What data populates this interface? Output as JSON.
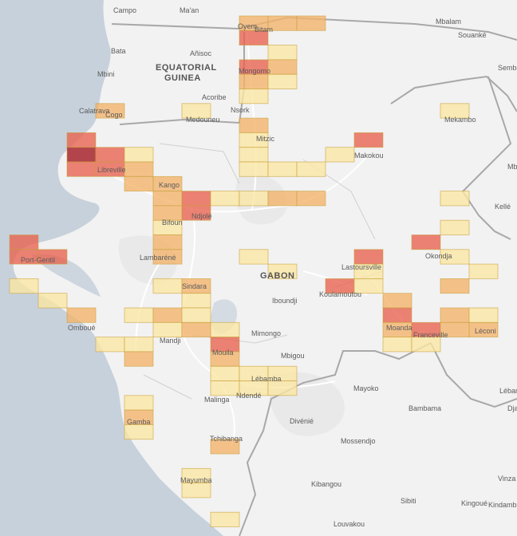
{
  "map": {
    "country_labels": [
      "EQUATORIAL",
      "GUINEA",
      "GABON"
    ],
    "place_labels": [
      "Campo",
      "Ma'an",
      "Mbalam",
      "Souanké",
      "Sembé",
      "Bata",
      "Añisoc",
      "Mbini",
      "Acoribe",
      "Nsork",
      "Calatrava",
      "Cogo",
      "Medouneu",
      "Mekambo",
      "Mitzic",
      "Makokou",
      "Libreville",
      "Kango",
      "Bifoun",
      "Ndjolé",
      "Kellé",
      "Okondja",
      "Port-Gentil",
      "Lambaréné",
      "Lastoursville",
      "Koulamoutou",
      "Sindara",
      "Iboundji",
      "Omboué",
      "Mimongo",
      "Mouila",
      "Moanda",
      "Franceville",
      "Léconi",
      "Mbigou",
      "Ndendé",
      "Tchibanga",
      "Mayumba",
      "Mayoko",
      "Léban",
      "Bambama",
      "Divénié",
      "Mossendjo",
      "Kibangou",
      "Sibiti",
      "Kingoué",
      "Kindamba",
      "Louvakou",
      "Vinza",
      "Mbi",
      "Dja",
      "Gamba",
      "Mandji",
      "Oyem",
      "Bitam",
      "Mongomo",
      "Lébamba",
      "Malinga"
    ],
    "colors": {
      "water": "#c7d1dc",
      "land": "#f2f2f2",
      "border": "#a8a8a8",
      "road": "#ffffff"
    },
    "heat_levels": [
      {
        "level": 1,
        "color": "#fbe7a3"
      },
      {
        "level": 2,
        "color": "#f3b36a"
      },
      {
        "level": 3,
        "color": "#e8624e"
      },
      {
        "level": 4,
        "color": "#a8262f"
      }
    ],
    "cells": [
      {
        "row": 0,
        "col": 8,
        "level": 2
      },
      {
        "row": 0,
        "col": 9,
        "level": 2
      },
      {
        "row": 0,
        "col": 10,
        "level": 2
      },
      {
        "row": 1,
        "col": 8,
        "level": 3
      },
      {
        "row": 2,
        "col": 9,
        "level": 1
      },
      {
        "row": 3,
        "col": 8,
        "level": 3
      },
      {
        "row": 3,
        "col": 9,
        "level": 2
      },
      {
        "row": 4,
        "col": 8,
        "level": 2
      },
      {
        "row": 4,
        "col": 9,
        "level": 1
      },
      {
        "row": 5,
        "col": 8,
        "level": 1
      },
      {
        "row": 6,
        "col": 3,
        "level": 2
      },
      {
        "row": 6,
        "col": 6,
        "level": 1
      },
      {
        "row": 6,
        "col": 15,
        "level": 1
      },
      {
        "row": 7,
        "col": 8,
        "level": 2
      },
      {
        "row": 8,
        "col": 2,
        "level": 3
      },
      {
        "row": 8,
        "col": 8,
        "level": 1
      },
      {
        "row": 8,
        "col": 12,
        "level": 3
      },
      {
        "row": 9,
        "col": 2,
        "level": 4
      },
      {
        "row": 9,
        "col": 3,
        "level": 3
      },
      {
        "row": 9,
        "col": 4,
        "level": 1
      },
      {
        "row": 9,
        "col": 8,
        "level": 1
      },
      {
        "row": 9,
        "col": 11,
        "level": 1
      },
      {
        "row": 10,
        "col": 2,
        "level": 3
      },
      {
        "row": 10,
        "col": 3,
        "level": 3
      },
      {
        "row": 10,
        "col": 4,
        "level": 2
      },
      {
        "row": 10,
        "col": 8,
        "level": 1
      },
      {
        "row": 10,
        "col": 9,
        "level": 1
      },
      {
        "row": 10,
        "col": 10,
        "level": 1
      },
      {
        "row": 11,
        "col": 4,
        "level": 2
      },
      {
        "row": 11,
        "col": 5,
        "level": 2
      },
      {
        "row": 12,
        "col": 5,
        "level": 2
      },
      {
        "row": 12,
        "col": 6,
        "level": 3
      },
      {
        "row": 12,
        "col": 7,
        "level": 1
      },
      {
        "row": 12,
        "col": 8,
        "level": 1
      },
      {
        "row": 12,
        "col": 9,
        "level": 2
      },
      {
        "row": 12,
        "col": 10,
        "level": 2
      },
      {
        "row": 12,
        "col": 15,
        "level": 1
      },
      {
        "row": 13,
        "col": 5,
        "level": 2
      },
      {
        "row": 13,
        "col": 6,
        "level": 3
      },
      {
        "row": 14,
        "col": 5,
        "level": 1
      },
      {
        "row": 14,
        "col": 15,
        "level": 1
      },
      {
        "row": 15,
        "col": 0,
        "level": 3
      },
      {
        "row": 15,
        "col": 5,
        "level": 2
      },
      {
        "row": 15,
        "col": 14,
        "level": 3
      },
      {
        "row": 16,
        "col": 0,
        "level": 3
      },
      {
        "row": 16,
        "col": 1,
        "level": 3
      },
      {
        "row": 16,
        "col": 5,
        "level": 2
      },
      {
        "row": 16,
        "col": 8,
        "level": 1
      },
      {
        "row": 16,
        "col": 12,
        "level": 3
      },
      {
        "row": 16,
        "col": 15,
        "level": 1
      },
      {
        "row": 17,
        "col": 9,
        "level": 1
      },
      {
        "row": 17,
        "col": 12,
        "level": 1
      },
      {
        "row": 17,
        "col": 16,
        "level": 1
      },
      {
        "row": 18,
        "col": 0,
        "level": 1
      },
      {
        "row": 18,
        "col": 5,
        "level": 1
      },
      {
        "row": 18,
        "col": 6,
        "level": 2
      },
      {
        "row": 18,
        "col": 11,
        "level": 3
      },
      {
        "row": 18,
        "col": 12,
        "level": 1
      },
      {
        "row": 18,
        "col": 15,
        "level": 2
      },
      {
        "row": 19,
        "col": 1,
        "level": 1
      },
      {
        "row": 19,
        "col": 6,
        "level": 1
      },
      {
        "row": 19,
        "col": 13,
        "level": 2
      },
      {
        "row": 20,
        "col": 2,
        "level": 2
      },
      {
        "row": 20,
        "col": 4,
        "level": 1
      },
      {
        "row": 20,
        "col": 5,
        "level": 2
      },
      {
        "row": 20,
        "col": 6,
        "level": 1
      },
      {
        "row": 20,
        "col": 13,
        "level": 3
      },
      {
        "row": 20,
        "col": 15,
        "level": 2
      },
      {
        "row": 20,
        "col": 16,
        "level": 1
      },
      {
        "row": 21,
        "col": 5,
        "level": 1
      },
      {
        "row": 21,
        "col": 6,
        "level": 2
      },
      {
        "row": 21,
        "col": 7,
        "level": 1
      },
      {
        "row": 21,
        "col": 13,
        "level": 2
      },
      {
        "row": 21,
        "col": 14,
        "level": 3
      },
      {
        "row": 21,
        "col": 15,
        "level": 2
      },
      {
        "row": 21,
        "col": 16,
        "level": 2
      },
      {
        "row": 22,
        "col": 3,
        "level": 1
      },
      {
        "row": 22,
        "col": 4,
        "level": 1
      },
      {
        "row": 22,
        "col": 7,
        "level": 3
      },
      {
        "row": 22,
        "col": 13,
        "level": 1
      },
      {
        "row": 22,
        "col": 14,
        "level": 1
      },
      {
        "row": 23,
        "col": 4,
        "level": 2
      },
      {
        "row": 23,
        "col": 7,
        "level": 2
      },
      {
        "row": 24,
        "col": 7,
        "level": 1
      },
      {
        "row": 24,
        "col": 8,
        "level": 1
      },
      {
        "row": 24,
        "col": 9,
        "level": 1
      },
      {
        "row": 25,
        "col": 7,
        "level": 1
      },
      {
        "row": 25,
        "col": 8,
        "level": 1
      },
      {
        "row": 25,
        "col": 9,
        "level": 1
      },
      {
        "row": 26,
        "col": 4,
        "level": 1
      },
      {
        "row": 27,
        "col": 4,
        "level": 2
      },
      {
        "row": 28,
        "col": 4,
        "level": 1
      },
      {
        "row": 29,
        "col": 7,
        "level": 2
      },
      {
        "row": 31,
        "col": 6,
        "level": 1
      },
      {
        "row": 32,
        "col": 6,
        "level": 1
      },
      {
        "row": 34,
        "col": 7,
        "level": 1
      }
    ]
  }
}
